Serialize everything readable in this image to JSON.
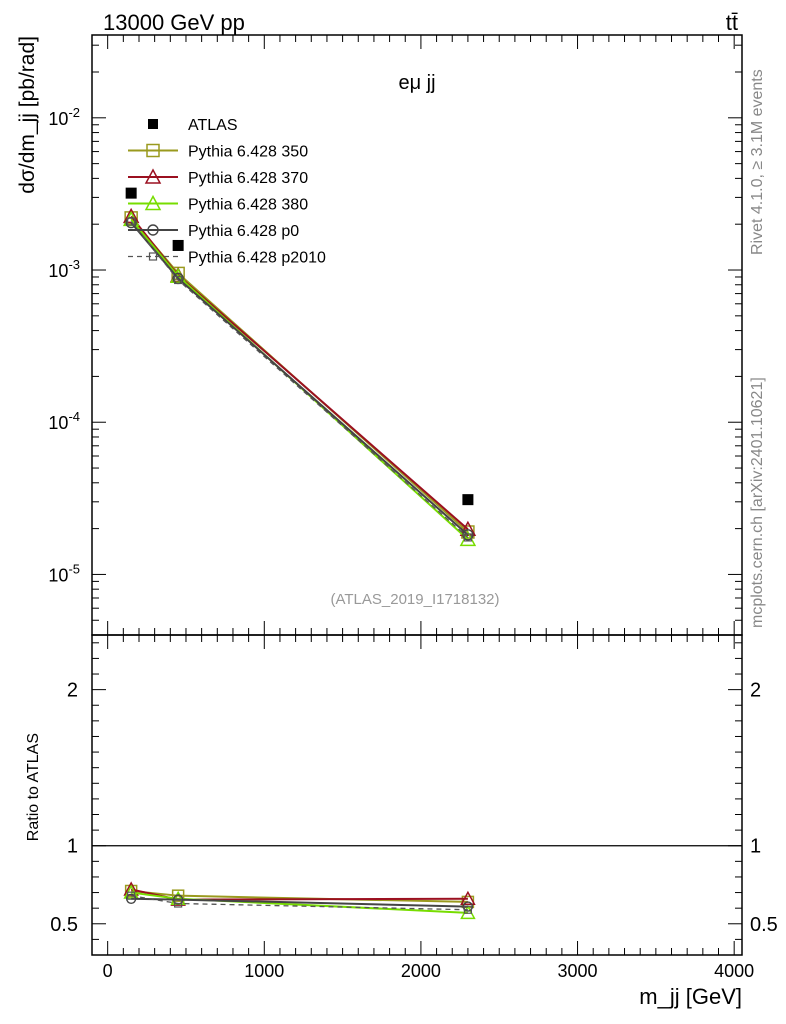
{
  "header": {
    "left": "13000 GeV pp",
    "right": "tt̄"
  },
  "side_text": {
    "rivet": "Rivet 4.1.0, ≥ 3.1M events",
    "mcplots": "mcplots.cern.ch [arXiv:2401.10621]"
  },
  "chart_data": {
    "type": "scatter",
    "title": "eμ jj",
    "analysis": "(ATLAS_2019_I1718132)",
    "xlabel": "m_jj [GeV]",
    "ylabel": "dσ/dm_jj [pb/rad]",
    "ratio_ylabel": "Ratio to ATLAS",
    "x_ticks": [
      "0",
      "1000",
      "2000",
      "3000",
      "4000"
    ],
    "xlim": [
      -100,
      4050
    ],
    "ylim": [
      4e-06,
      0.035
    ],
    "ylog": true,
    "ratio_ylim": [
      0.3,
      2.35
    ],
    "ratio_ticks": [
      "0.5",
      "1",
      "2"
    ],
    "legend_position": "top-left",
    "x": [
      150,
      450,
      2300
    ],
    "series": [
      {
        "name": "ATLAS",
        "color": "#000000",
        "marker": "filled-square",
        "values": [
          0.0032,
          0.00145,
          3.1e-05
        ]
      },
      {
        "name": "Pythia 6.428 350",
        "color": "#9a9a1e",
        "marker": "open-square",
        "values": [
          0.0022,
          0.00095,
          1.9e-05
        ]
      },
      {
        "name": "Pythia 6.428 370",
        "color": "#9b1020",
        "marker": "open-triangle",
        "values": [
          0.00225,
          0.00092,
          1.98e-05
        ]
      },
      {
        "name": "Pythia 6.428 380",
        "color": "#77dd00",
        "marker": "open-triangle",
        "values": [
          0.00215,
          0.00091,
          1.7e-05
        ]
      },
      {
        "name": "Pythia 6.428 p0",
        "color": "#444444",
        "marker": "open-circle",
        "values": [
          0.00205,
          0.00088,
          1.82e-05
        ]
      },
      {
        "name": "Pythia 6.428 p2010",
        "color": "#555555",
        "marker": "small-square",
        "dashed": true,
        "values": [
          0.00208,
          0.00086,
          1.75e-05
        ]
      }
    ],
    "ratio_series": [
      {
        "name": "Pythia 6.428 350",
        "values": [
          0.71,
          0.68,
          0.64
        ]
      },
      {
        "name": "Pythia 6.428 370",
        "values": [
          0.72,
          0.655,
          0.66
        ]
      },
      {
        "name": "Pythia 6.428 380",
        "values": [
          0.7,
          0.66,
          0.57
        ]
      },
      {
        "name": "Pythia 6.428 p0",
        "values": [
          0.66,
          0.655,
          0.61
        ]
      },
      {
        "name": "Pythia 6.428 p2010",
        "values": [
          0.68,
          0.63,
          0.59
        ]
      }
    ]
  }
}
